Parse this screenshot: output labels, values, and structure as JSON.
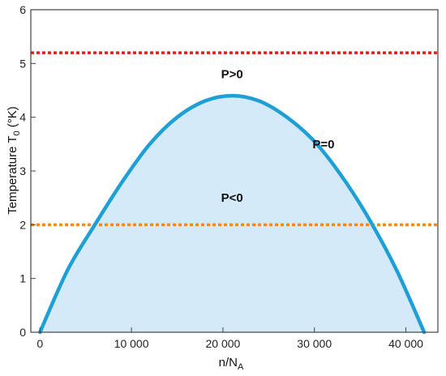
{
  "chart_data": {
    "type": "area",
    "xlabel_main": "n/N",
    "xlabel_sub": "A",
    "ylabel_main": "Temperature T",
    "ylabel_sub": "0",
    "ylabel_unit": " (°K)",
    "xlim": [
      -1000,
      43500
    ],
    "ylim": [
      0,
      6
    ],
    "x_ticks": [
      0,
      10000,
      20000,
      30000,
      40000
    ],
    "x_tick_labels": [
      "0",
      "10 000",
      "20 000",
      "30 000",
      "40 000"
    ],
    "y_ticks": [
      0,
      1,
      2,
      3,
      4,
      5,
      6
    ],
    "y_tick_labels": [
      "0",
      "1",
      "2",
      "3",
      "4",
      "5",
      "6"
    ],
    "grid": false,
    "series": [
      {
        "color": "#1e9fd6",
        "fill": "#d4eaf8",
        "x": [
          0,
          3000,
          6000,
          9000,
          12000,
          15000,
          18000,
          21000,
          24000,
          27000,
          30000,
          33000,
          36000,
          39000,
          42000
        ],
        "y": [
          0,
          1.15,
          2.0,
          2.8,
          3.5,
          4.0,
          4.3,
          4.4,
          4.3,
          4.0,
          3.55,
          2.9,
          2.1,
          1.15,
          0
        ]
      }
    ],
    "reference_lines": [
      {
        "y": 5.2,
        "color": "#e0201b"
      },
      {
        "y": 2.0,
        "color": "#f28a1a"
      }
    ],
    "annotations": [
      {
        "text": "P>0",
        "x": 21000,
        "y": 4.8
      },
      {
        "text": "P=0",
        "x": 31000,
        "y": 3.5
      },
      {
        "text": "P<0",
        "x": 21000,
        "y": 2.5
      }
    ]
  }
}
